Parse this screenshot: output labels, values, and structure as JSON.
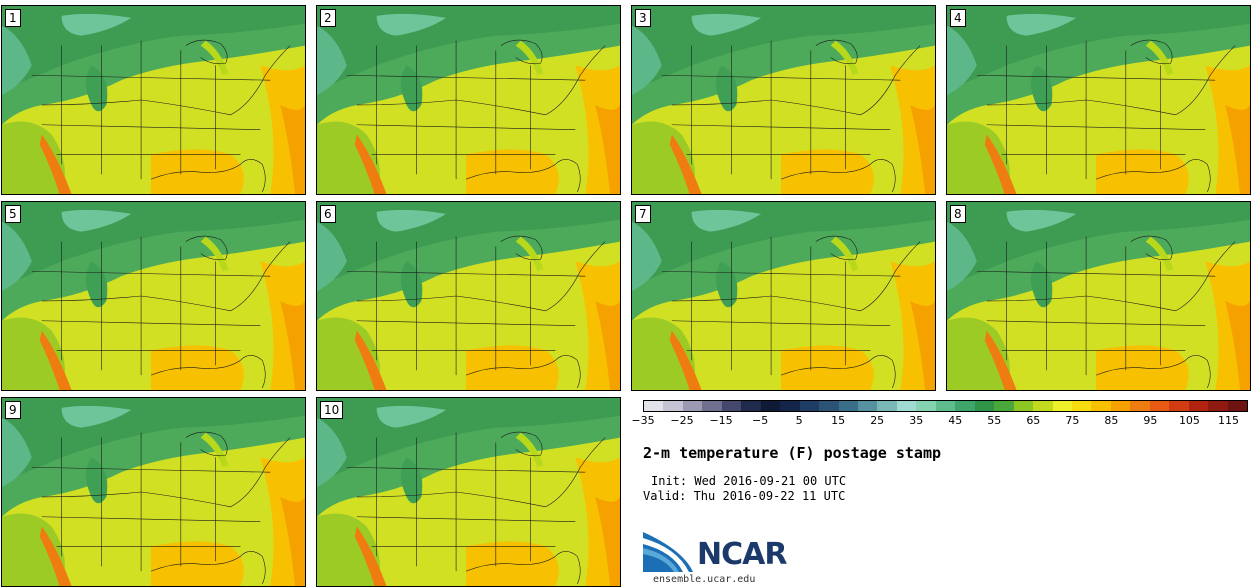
{
  "figure": {
    "title": "2-m temperature (F) postage stamp",
    "init": "Init: Wed 2016-09-21 00 UTC",
    "valid": "Valid: Thu 2016-09-22 11 UTC",
    "logo_text": "NCAR",
    "url": "ensemble.ucar.edu"
  },
  "stamps": [
    {
      "label": "1"
    },
    {
      "label": "2"
    },
    {
      "label": "3"
    },
    {
      "label": "4"
    },
    {
      "label": "5"
    },
    {
      "label": "6"
    },
    {
      "label": "7"
    },
    {
      "label": "8"
    },
    {
      "label": "9"
    },
    {
      "label": "10"
    }
  ],
  "colorbar": {
    "min": -35,
    "max": 120,
    "step": 5,
    "tick_labels": [
      "−35",
      "−25",
      "−15",
      "−5",
      "5",
      "15",
      "25",
      "35",
      "45",
      "55",
      "65",
      "75",
      "85",
      "95",
      "105",
      "115"
    ],
    "tick_values": [
      -35,
      -25,
      -15,
      -5,
      5,
      15,
      25,
      35,
      45,
      55,
      65,
      75,
      85,
      95,
      105,
      115
    ],
    "colors": [
      "#e2e2ea",
      "#c4c4d4",
      "#9a9ab4",
      "#6f7090",
      "#44486c",
      "#1f2a4c",
      "#0f1a34",
      "#14254a",
      "#1f3c64",
      "#2b5376",
      "#3b6e88",
      "#55919e",
      "#7ab7b7",
      "#a0dbd2",
      "#86d3b1",
      "#5fbc8c",
      "#3ea66a",
      "#2f9448",
      "#4aa83a",
      "#8cc724",
      "#c3db1e",
      "#eef02a",
      "#f7dc10",
      "#f7c000",
      "#f5a200",
      "#ef7c10",
      "#e85a14",
      "#d13c12",
      "#b22410",
      "#8e1a12",
      "#6e1410"
    ]
  }
}
